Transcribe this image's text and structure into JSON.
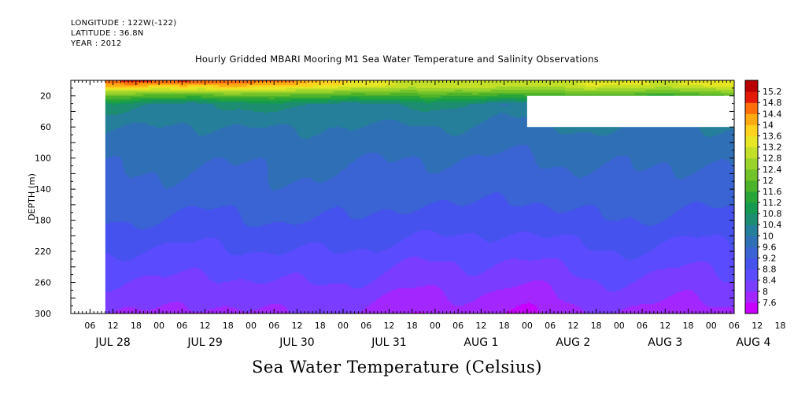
{
  "header": {
    "longitude": "LONGITUDE : 122W(-122)",
    "latitude": "LATITUDE : 36.8N",
    "year": "YEAR : 2012"
  },
  "title": "Hourly Gridded MBARI Mooring M1 Sea Water Temperature and Salinity Observations",
  "x_title": "Sea Water Temperature (Celsius)",
  "chart_data": {
    "type": "heatmap",
    "title": "Hourly Gridded MBARI Mooring M1 Sea Water Temperature and Salinity Observations",
    "xlabel": "",
    "ylabel": "DEPTH (m)",
    "colorbar_label": "Sea Water Temperature (Celsius)",
    "y_reversed": true,
    "ylim": [
      300,
      0
    ],
    "yticks": [
      20,
      60,
      100,
      140,
      180,
      220,
      260,
      300
    ],
    "xlim": [
      "2012-07-28 01:00",
      "2012-08-04 06:00"
    ],
    "x_hour_ticks": [
      "06",
      "12",
      "18",
      "00",
      "06",
      "12",
      "18",
      "00",
      "06",
      "12",
      "18",
      "00",
      "06",
      "12",
      "18",
      "00",
      "06",
      "12",
      "18",
      "00",
      "06",
      "12",
      "18",
      "00",
      "06",
      "12",
      "18",
      "00",
      "06",
      "12",
      "18",
      "00"
    ],
    "x_day_labels": [
      "JUL 28",
      "JUL 29",
      "JUL 30",
      "JUL 31",
      "AUG  1",
      "AUG  2",
      "AUG  3",
      "AUG  4"
    ],
    "colorbar_levels": [
      7.6,
      8,
      8.4,
      8.8,
      9.2,
      9.6,
      10,
      10.4,
      10.8,
      11.2,
      11.6,
      12,
      12.4,
      12.8,
      13.2,
      13.6,
      14,
      14.4,
      14.8,
      15.2
    ],
    "colorbar_colors": [
      "#c800ff",
      "#a326ff",
      "#7a3dff",
      "#5a4bff",
      "#4552ee",
      "#3a63d3",
      "#2f6fb6",
      "#257f9a",
      "#1c8d70",
      "#169a52",
      "#27a538",
      "#4cb22a",
      "#72c22a",
      "#9ad32b",
      "#c3df27",
      "#e7e624",
      "#ffd21e",
      "#ffaa12",
      "#ff6e0a",
      "#e41a05",
      "#b80000"
    ],
    "missing_data": [
      {
        "time_range": [
          "2012-07-28 01:00",
          "2012-07-28 10:00"
        ],
        "depth_range": [
          0,
          300
        ]
      },
      {
        "time_range": [
          "2012-08-02 00:00",
          "2012-08-04 06:00"
        ],
        "depth_range": [
          20,
          60
        ]
      }
    ],
    "depth_profile": [
      {
        "depth": 5,
        "temp": 13.4
      },
      {
        "depth": 15,
        "temp": 12.2
      },
      {
        "depth": 30,
        "temp": 10.4
      },
      {
        "depth": 60,
        "temp": 10.0
      },
      {
        "depth": 100,
        "temp": 9.7
      },
      {
        "depth": 140,
        "temp": 9.5
      },
      {
        "depth": 180,
        "temp": 9.2
      },
      {
        "depth": 220,
        "temp": 8.8
      },
      {
        "depth": 260,
        "temp": 8.4
      },
      {
        "depth": 300,
        "temp": 8.0
      }
    ],
    "notes": "Temperature decreases with depth; warm (14-15 C) surface layer on JUL 28-29, cold cores (<8 C) near 300 m around JUL 31 18:00-AUG 1 00:00 and AUG 2 18:00-AUG 3 00:00."
  }
}
